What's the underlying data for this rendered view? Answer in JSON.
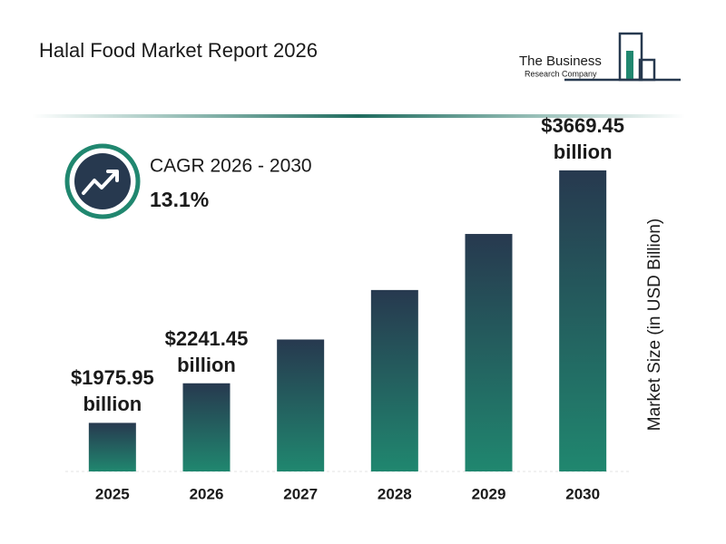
{
  "title": "Halal Food Market Report 2026",
  "logo": {
    "line1": "The Business",
    "line2": "Research Company"
  },
  "chart_data": {
    "type": "bar",
    "cagr_label": "CAGR 2026 - 2030",
    "cagr_value": "13.1%",
    "y_label": "Market Size (in USD Billion)",
    "categories": [
      "2025",
      "2026",
      "2027",
      "2028",
      "2029",
      "2030"
    ],
    "values": [
      1975.95,
      2241.45,
      2535,
      2867,
      3243,
      3669.45
    ],
    "value_labels": [
      "$1975.95 billion",
      "$2241.45 billion",
      null,
      null,
      null,
      "$3669.45 billion"
    ],
    "gradient": [
      "#27394f",
      "#20876f"
    ],
    "ylim": [
      1650,
      3900
    ]
  }
}
